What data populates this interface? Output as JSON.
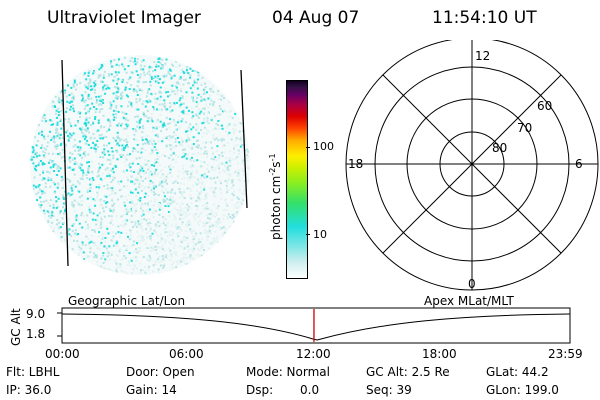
{
  "header": {
    "title": "Ultraviolet Imager",
    "date": "04 Aug 07",
    "time": "11:54:10 UT"
  },
  "colorbar": {
    "unit_prefix": "photon cm",
    "unit_exp1": "-2",
    "unit_mid": "s",
    "unit_exp2": "-1",
    "ticks": [
      "100",
      "10"
    ]
  },
  "polar": {
    "mlt_labels": {
      "top": "12",
      "left": "18",
      "right": "6",
      "bottom": "0"
    },
    "lat_labels": [
      "60",
      "70",
      "80"
    ]
  },
  "orbit": {
    "left_label": "Geographic Lat/Lon",
    "right_label": "Apex  MLat/MLT",
    "axis_title": "GC Alt",
    "y_ticks": [
      "9.0",
      "1.8"
    ],
    "x_ticks": [
      "00:00",
      "06:00",
      "12:00",
      "18:00",
      "23:59"
    ],
    "current_time_fraction": 0.496
  },
  "status": {
    "flt": "Flt: LBHL",
    "door": "Door: Open",
    "mode": "Mode: Normal",
    "gc_alt": "GC Alt: 2.5 Re",
    "glat": "GLat:  44.2",
    "ip": "IP: 36.0",
    "gain": "Gain: 14",
    "dsp_label": "Dsp:",
    "dsp_value": "0.0",
    "seq": "Seq: 39",
    "glon": "GLon: 199.0"
  },
  "colors": {
    "speckle_cyan": "#22dddd",
    "speckle_pale": "#b8e4e4",
    "marker_red": "#cc0000"
  }
}
